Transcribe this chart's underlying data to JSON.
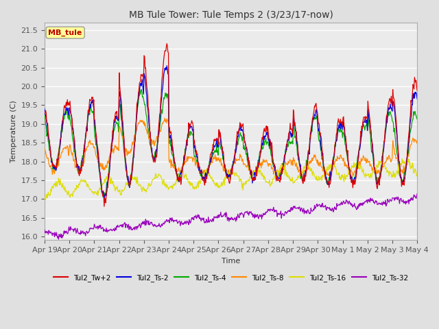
{
  "title": "MB Tule Tower: Tule Temps 2 (3/23/17-now)",
  "xlabel": "Time",
  "ylabel": "Temperature (C)",
  "ylim": [
    15.9,
    21.7
  ],
  "yticks": [
    16.0,
    16.5,
    17.0,
    17.5,
    18.0,
    18.5,
    19.0,
    19.5,
    20.0,
    20.5,
    21.0,
    21.5
  ],
  "bg_color": "#e0e0e0",
  "plot_bg_color": "#ebebeb",
  "grid_color": "#ffffff",
  "series_colors": {
    "Tul2_Tw+2": "#dd0000",
    "Tul2_Ts-2": "#0000dd",
    "Tul2_Ts-4": "#00aa00",
    "Tul2_Ts-8": "#ff8800",
    "Tul2_Ts-16": "#dddd00",
    "Tul2_Ts-32": "#9900bb"
  },
  "x_tick_labels": [
    "Apr 19",
    "Apr 20",
    "Apr 21",
    "Apr 22",
    "Apr 23",
    "Apr 24",
    "Apr 25",
    "Apr 26",
    "Apr 27",
    "Apr 28",
    "Apr 29",
    "Apr 30",
    "May 1",
    "May 2",
    "May 3",
    "May 4"
  ],
  "label_box_color": "#ffff99",
  "label_box_text": "MB_tule",
  "label_box_text_color": "#bb0000"
}
